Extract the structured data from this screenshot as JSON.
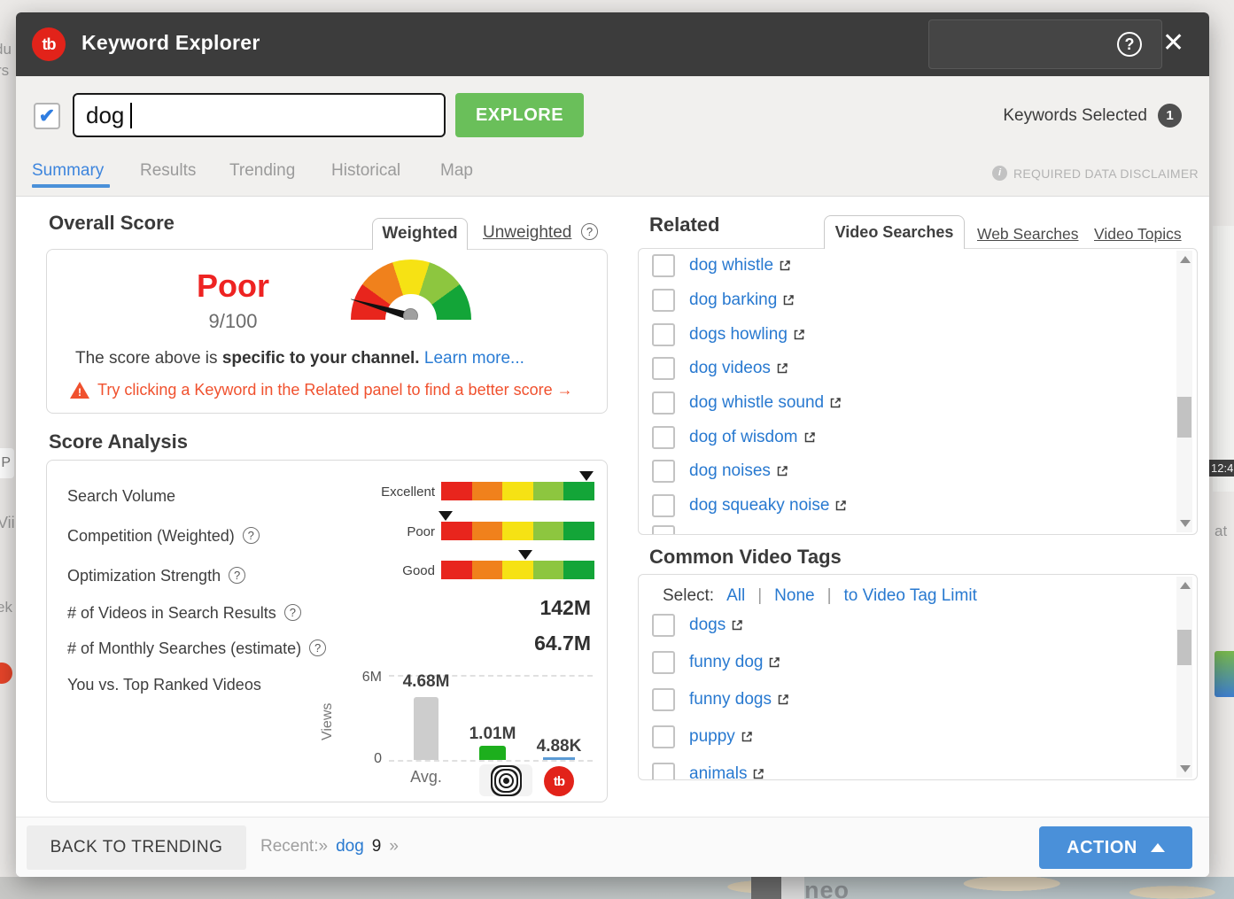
{
  "window": {
    "title": "Keyword Explorer",
    "logo_text": "tb"
  },
  "search": {
    "checkbox_checked": true,
    "value": "dog",
    "explore_label": "EXPLORE",
    "keywords_selected_label": "Keywords Selected",
    "keywords_selected_count": "1"
  },
  "nav_tabs": [
    "Summary",
    "Results",
    "Trending",
    "Historical",
    "Map"
  ],
  "disclaimer": {
    "label": "REQUIRED DATA DISCLAIMER"
  },
  "overall": {
    "title": "Overall Score",
    "weighted_tab": "Weighted",
    "unweighted_tab": "Unweighted",
    "rating": "Poor",
    "score": "9/100",
    "note_prefix": "The score above is ",
    "note_bold": "specific to your channel.",
    "learn_more": "Learn more...",
    "warning": "Try clicking a Keyword in the Related panel to find a better score →"
  },
  "score_analysis": {
    "title": "Score Analysis",
    "scale_colors": [
      "#e8251d",
      "#f0811c",
      "#f6e214",
      "#8dc63f",
      "#13a538"
    ],
    "rows": [
      {
        "label": "Search Volume",
        "rating": "Excellent",
        "marker_pct": 95,
        "help": false
      },
      {
        "label": "Competition (Weighted)",
        "rating": "Poor",
        "marker_pct": 3,
        "help": true
      },
      {
        "label": "Optimization Strength",
        "rating": "Good",
        "marker_pct": 55,
        "help": true
      }
    ],
    "stats": [
      {
        "label": "# of Videos in Search Results",
        "value": "142M"
      },
      {
        "label": "# of Monthly Searches (estimate)",
        "value": "64.7M"
      }
    ],
    "comparison": {
      "label": "You vs. Top Ranked Videos",
      "chart_data": {
        "type": "bar",
        "ylabel": "Views",
        "y_top": "6M",
        "y_bottom": "0",
        "ylim": [
          0,
          6000000
        ],
        "grid": "dashed top and bottom",
        "bars": [
          {
            "name": "Avg.",
            "value": "4.68M",
            "height_pct": 74,
            "color": "#cdcdcd"
          },
          {
            "name": "your-channel-target",
            "value": "1.01M",
            "height_pct": 17,
            "color": "#1daf1d"
          },
          {
            "name": "tubebuddy",
            "value": "4.88K",
            "height_pct": 3,
            "color": "#5b9bd5"
          }
        ]
      }
    }
  },
  "related": {
    "title": "Related",
    "tabs": [
      "Video Searches",
      "Web Searches",
      "Video Topics"
    ],
    "items": [
      "dog whistle",
      "dog barking",
      "dogs howling",
      "dog videos",
      "dog whistle sound",
      "dog of wisdom",
      "dog noises",
      "dog squeaky noise"
    ]
  },
  "common_tags": {
    "title": "Common Video Tags",
    "select_label": "Select:",
    "separator": "|",
    "select_options": [
      "All",
      "None",
      "to Video Tag Limit"
    ],
    "items": [
      "dogs",
      "funny dog",
      "funny dogs",
      "puppy",
      "animals"
    ]
  },
  "footer": {
    "back_button": "BACK TO TRENDING",
    "recent_label": "Recent:",
    "chevron": "»",
    "recent_keyword": "dog",
    "recent_count": "9",
    "action_button": "ACTION"
  },
  "colors": {
    "header_dark": "#3c3c3c",
    "brand_red": "#e2231a",
    "explore_green": "#6abf5a",
    "action_blue": "#4a90d9",
    "link_blue": "#2879d0",
    "active_tab_blue": "#3d85dd",
    "warning_orange": "#f0512e",
    "poor_red": "#ee2322"
  },
  "background_fragments": [
    "du",
    "rs",
    "P",
    "Vii",
    "ek",
    "12:4",
    "at",
    "neo"
  ]
}
